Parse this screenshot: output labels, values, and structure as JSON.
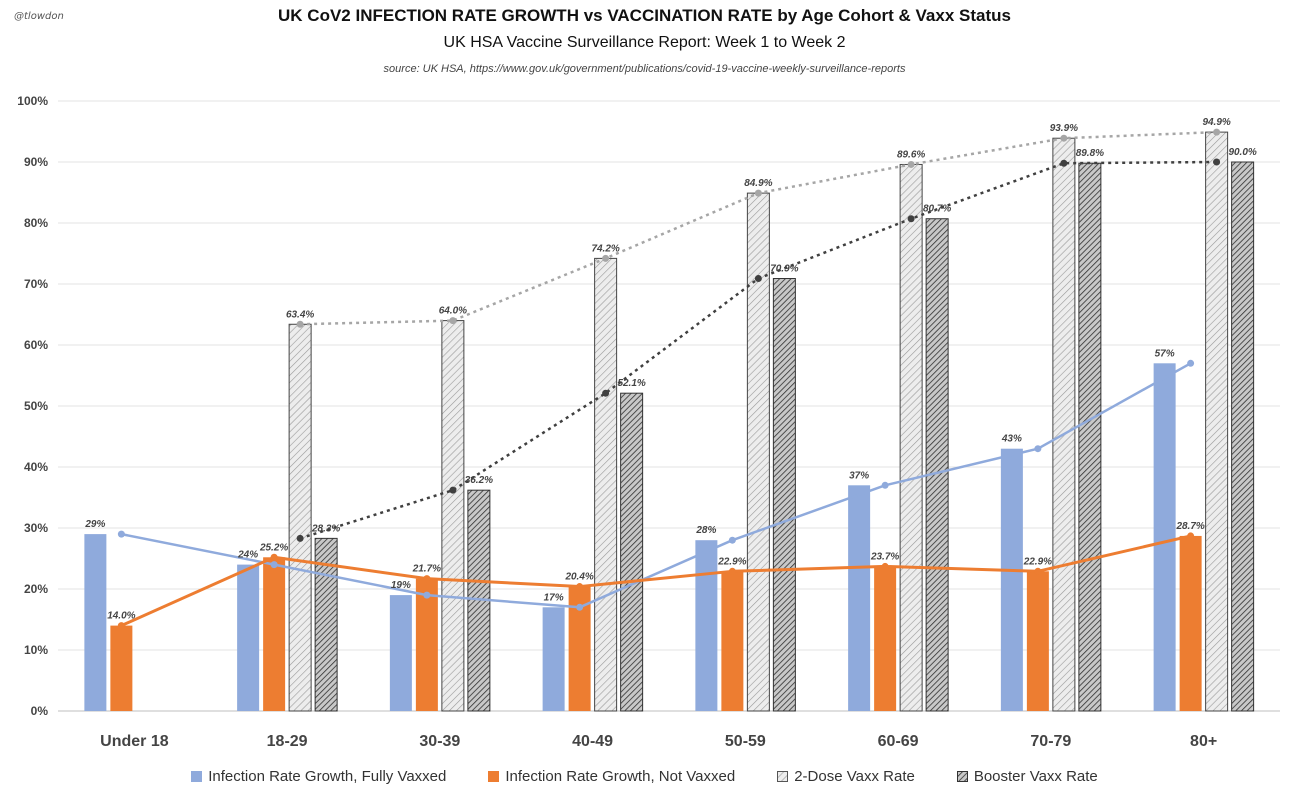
{
  "header": {
    "handle": "@tlowdon",
    "title": "UK CoV2 INFECTION RATE GROWTH vs VACCINATION RATE by Age Cohort & Vaxx Status",
    "subtitle": "UK HSA Vaccine Surveillance Report: Week 1  to Week 2",
    "source": "source:  UK HSA, https://www.gov.uk/government/publications/covid-19-vaccine-weekly-surveillance-reports"
  },
  "chart_data": {
    "type": "bar",
    "categories": [
      "Under 18",
      "18-29",
      "30-39",
      "40-49",
      "50-59",
      "60-69",
      "70-79",
      "80+"
    ],
    "ylim": [
      0,
      100
    ],
    "yticks": [
      0,
      10,
      20,
      30,
      40,
      50,
      60,
      70,
      80,
      90,
      100
    ],
    "ytick_suffix": "%",
    "grid": true,
    "legend_position": "bottom",
    "series": [
      {
        "name": "Infection Rate Growth, Fully Vaxxed",
        "kind": "bar+line",
        "color": "#8FAADC",
        "values": [
          29,
          24,
          19,
          17,
          28,
          37,
          43,
          57
        ],
        "labels": [
          "29%",
          "24%",
          "19%",
          "17%",
          "28%",
          "37%",
          "43%",
          "57%"
        ]
      },
      {
        "name": "Infection Rate Growth, Not Vaxxed",
        "kind": "bar+line",
        "color": "#ED7D31",
        "values": [
          14.0,
          25.2,
          21.7,
          20.4,
          22.9,
          23.7,
          22.9,
          28.7
        ],
        "labels": [
          "14.0%",
          "25.2%",
          "21.7%",
          "20.4%",
          "22.9%",
          "23.7%",
          "22.9%",
          "28.7%"
        ]
      },
      {
        "name": "2-Dose Vaxx Rate",
        "kind": "hatched-bar+dotted-line",
        "color": "#A6A6A6",
        "values": [
          null,
          63.4,
          64.0,
          74.2,
          84.9,
          89.6,
          93.9,
          94.9
        ],
        "labels": [
          "",
          "63.4%",
          "64.0%",
          "74.2%",
          "84.9%",
          "89.6%",
          "93.9%",
          "94.9%"
        ]
      },
      {
        "name": "Booster Vaxx Rate",
        "kind": "hatched-bar+dotted-line",
        "color": "#404040",
        "values": [
          null,
          28.3,
          36.2,
          52.1,
          70.9,
          80.7,
          89.8,
          90.0
        ],
        "labels": [
          "",
          "28.3%",
          "36.2%",
          "52.1%",
          "70.9%",
          "80.7%",
          "89.8%",
          "90.0%"
        ]
      }
    ]
  }
}
